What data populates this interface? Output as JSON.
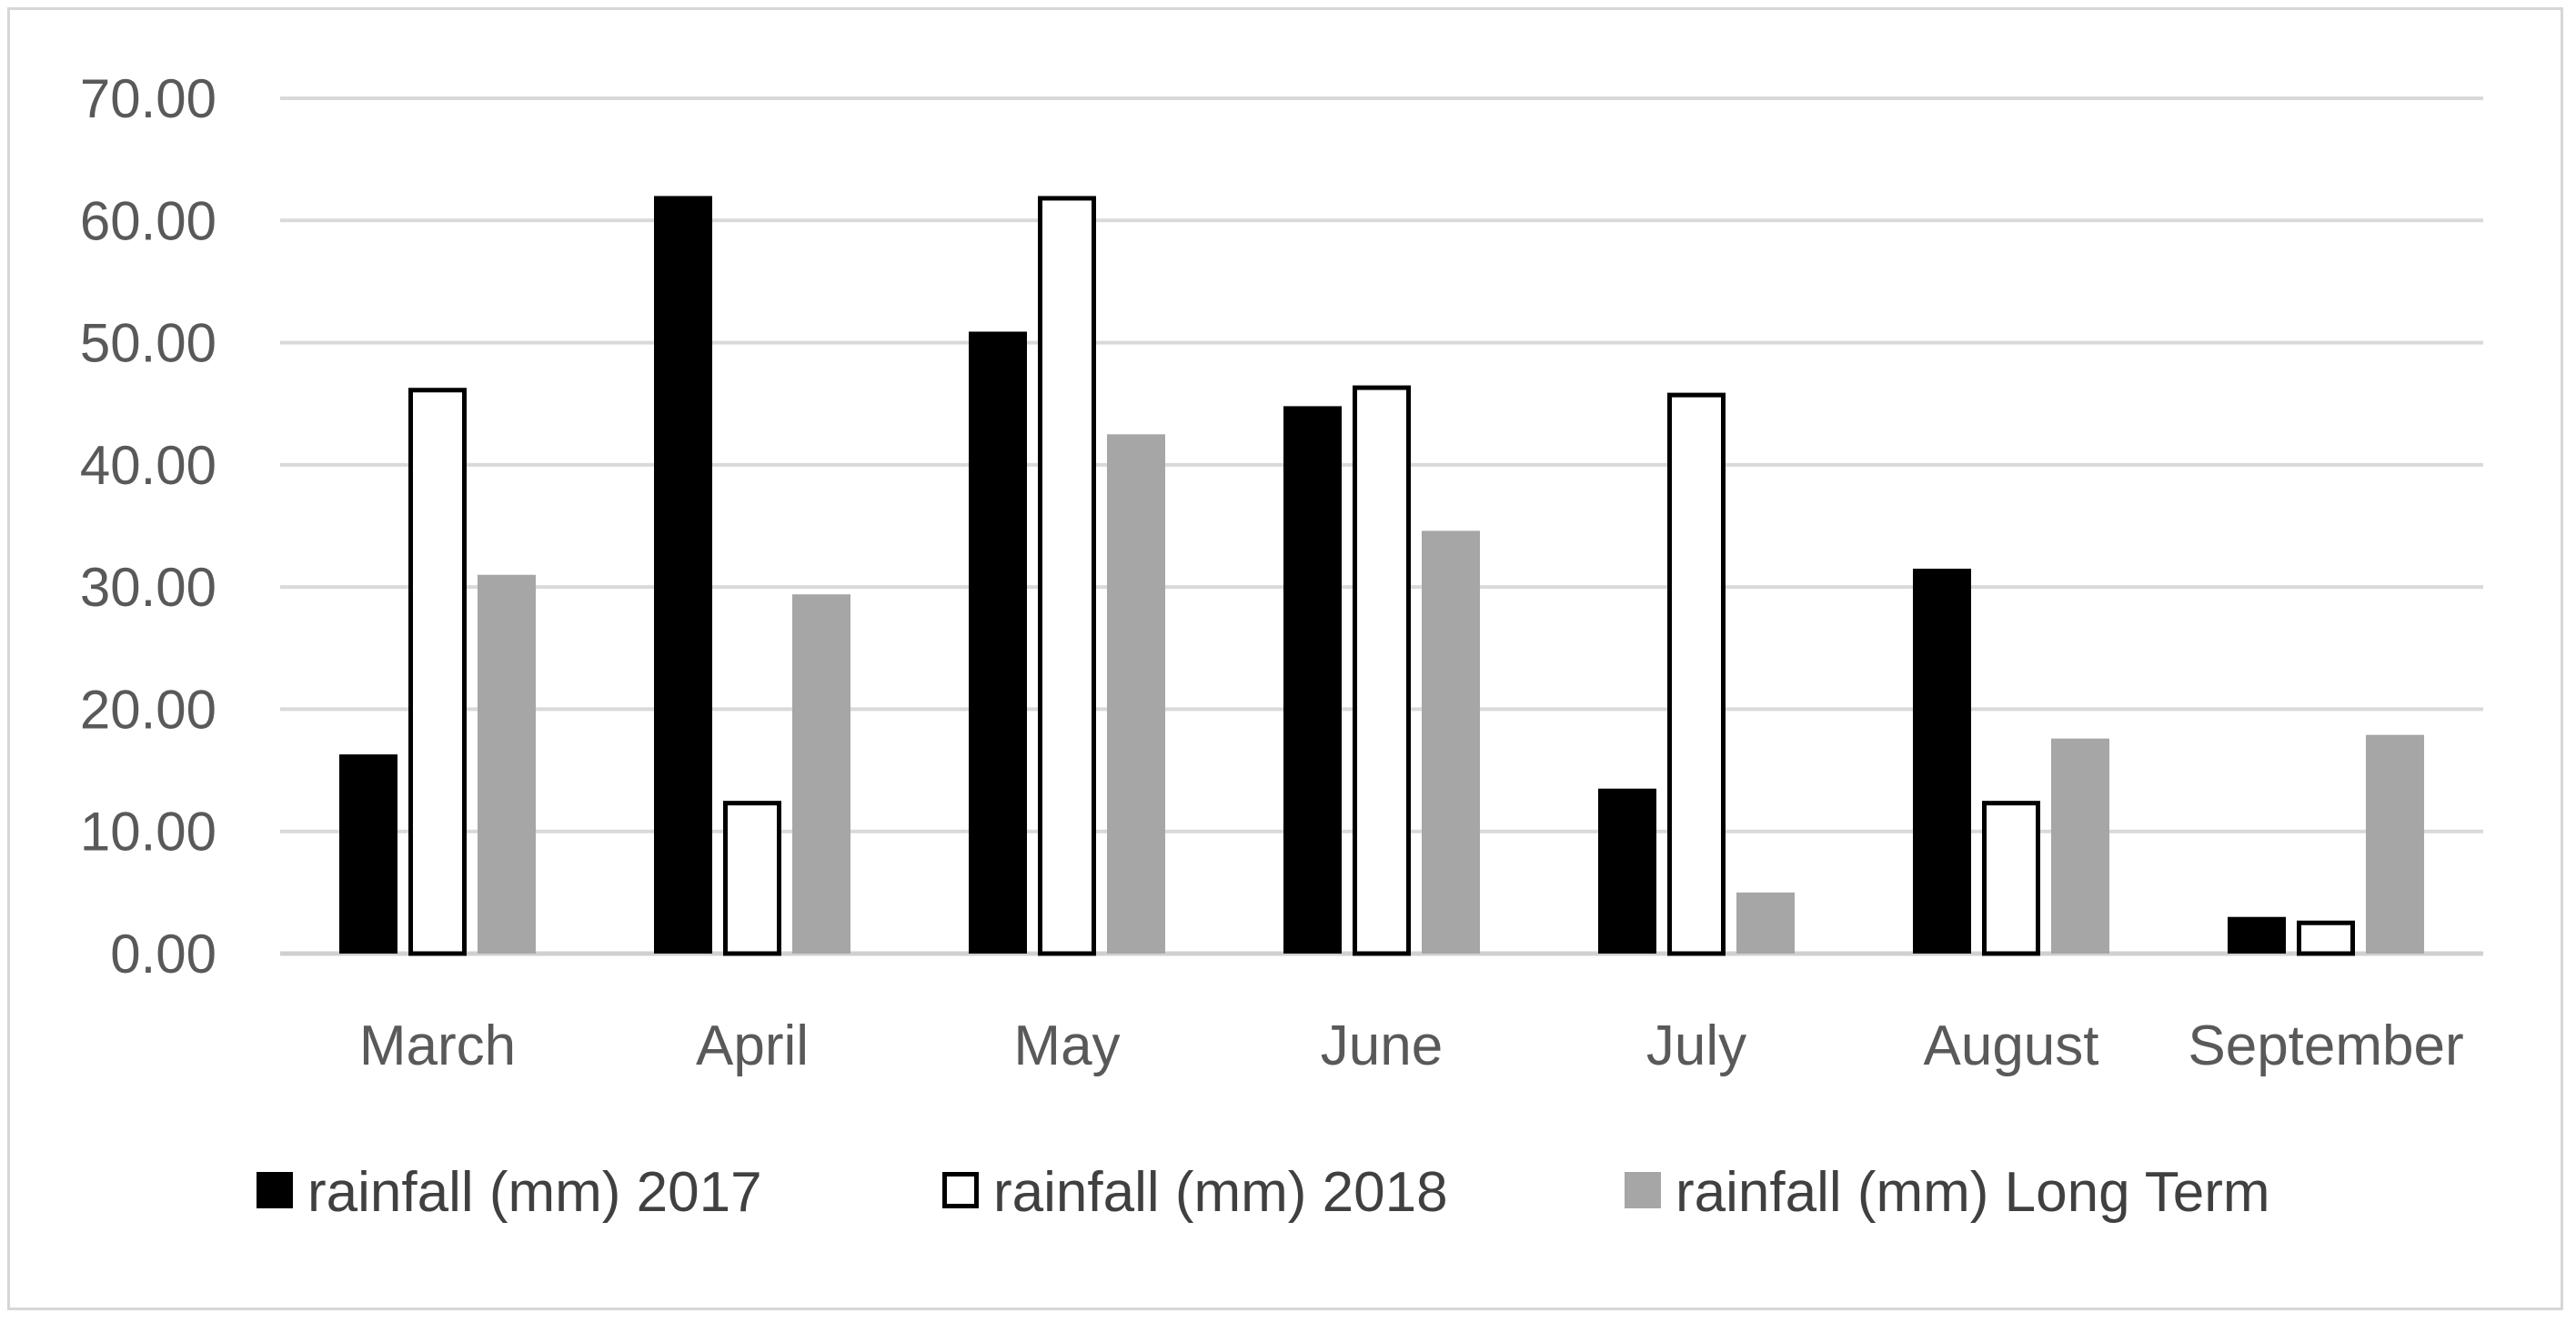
{
  "chart_data": {
    "type": "bar",
    "title": "",
    "xlabel": "",
    "ylabel": "",
    "ylim": [
      0,
      70
    ],
    "yticks": [
      "0.00",
      "10.00",
      "20.00",
      "30.00",
      "40.00",
      "50.00",
      "60.00",
      "70.00"
    ],
    "categories": [
      "March",
      "April",
      "May",
      "June",
      "July",
      "August",
      "September"
    ],
    "series": [
      {
        "name": "rainfall (mm) 2017",
        "fill": "#000000",
        "stroke": "#000000",
        "values": [
          16.3,
          62.0,
          50.9,
          44.8,
          13.5,
          31.5,
          3.0
        ]
      },
      {
        "name": "rainfall (mm) 2018",
        "fill": "#ffffff",
        "stroke": "#000000",
        "values": [
          46.3,
          12.5,
          62.0,
          46.5,
          45.9,
          12.5,
          2.7
        ]
      },
      {
        "name": "rainfall (mm) Long Term",
        "fill": "#a6a6a6",
        "stroke": "#a6a6a6",
        "values": [
          31.0,
          29.4,
          42.5,
          34.6,
          5.0,
          17.6,
          17.9
        ]
      }
    ],
    "grid": true,
    "legend": "bottom"
  }
}
